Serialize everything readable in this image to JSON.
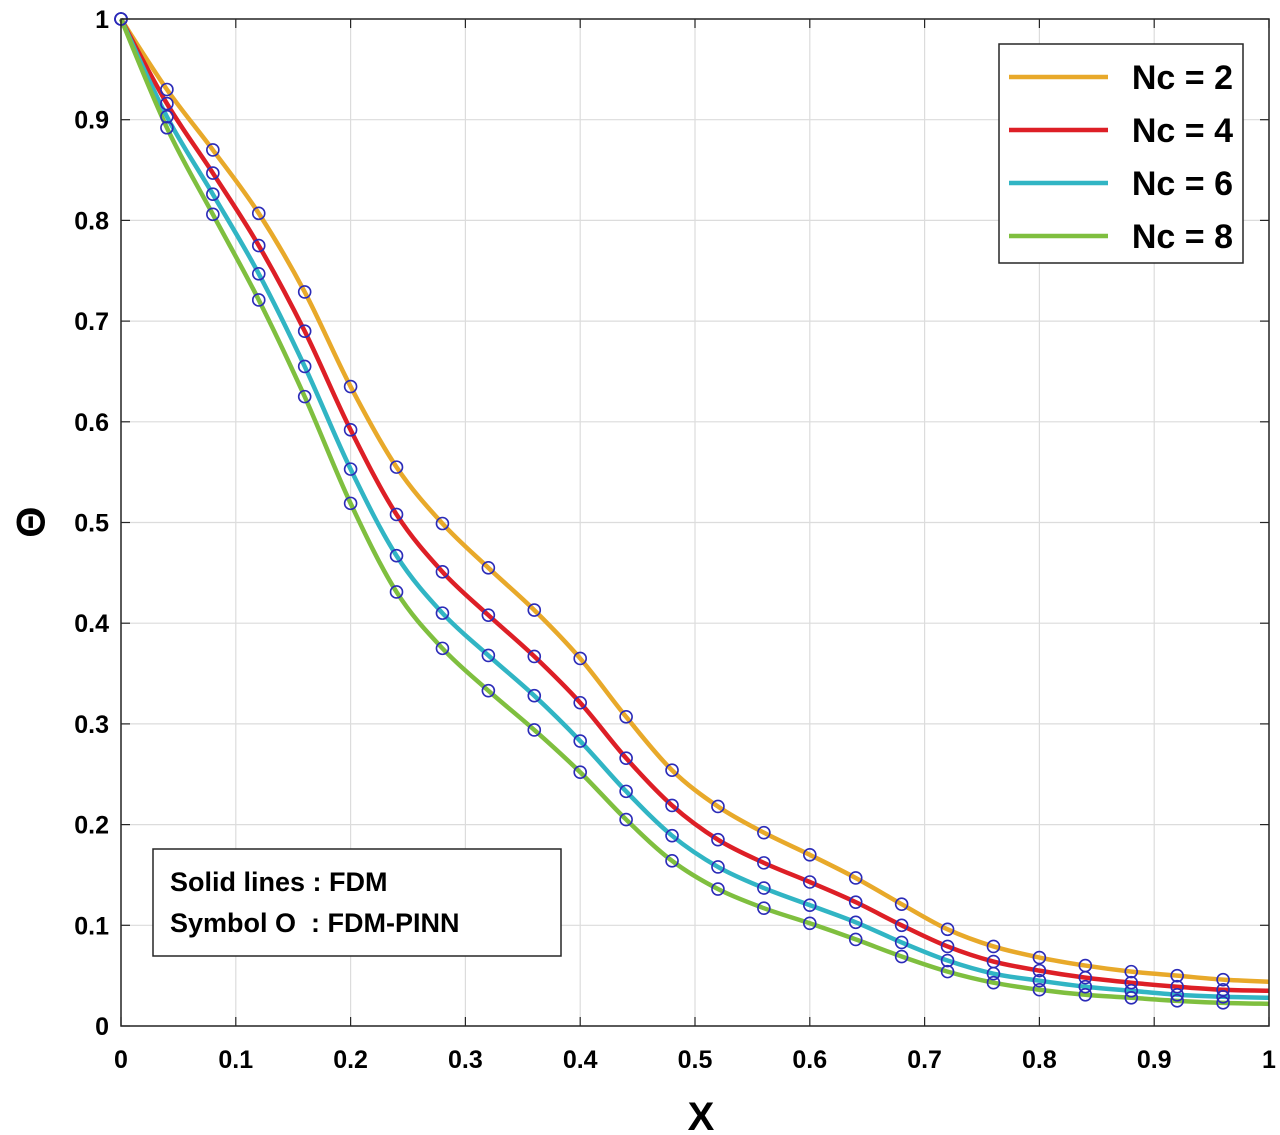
{
  "chart_data": {
    "type": "line",
    "xlabel": "X",
    "ylabel": "Θ",
    "xlim": [
      0,
      1
    ],
    "ylim": [
      0,
      1
    ],
    "grid": true,
    "legend_position": "top-right",
    "xticks": [
      "0",
      "0.1",
      "0.2",
      "0.3",
      "0.4",
      "0.5",
      "0.6",
      "0.7",
      "0.8",
      "0.9",
      "1"
    ],
    "yticks": [
      "0",
      "0.1",
      "0.2",
      "0.3",
      "0.4",
      "0.5",
      "0.6",
      "0.7",
      "0.8",
      "0.9",
      "1"
    ],
    "marker_color": "#2b2bb8",
    "x": [
      0,
      0.04,
      0.08,
      0.12,
      0.16,
      0.2,
      0.24,
      0.28,
      0.32,
      0.36,
      0.4,
      0.44,
      0.48,
      0.52,
      0.56,
      0.6,
      0.64,
      0.68,
      0.72,
      0.76,
      0.8,
      0.84,
      0.88,
      0.92,
      0.96,
      1.0
    ],
    "marker_x": [
      0,
      0.04,
      0.08,
      0.12,
      0.16,
      0.2,
      0.24,
      0.28,
      0.32,
      0.36,
      0.4,
      0.44,
      0.48,
      0.52,
      0.56,
      0.6,
      0.64,
      0.68,
      0.72,
      0.76,
      0.8,
      0.84,
      0.88,
      0.92,
      0.96
    ],
    "series": [
      {
        "name": "Nc = 2",
        "color": "#e8a92a",
        "values": [
          1.0,
          0.93,
          0.87,
          0.807,
          0.729,
          0.635,
          0.555,
          0.499,
          0.455,
          0.413,
          0.365,
          0.307,
          0.254,
          0.218,
          0.192,
          0.17,
          0.147,
          0.121,
          0.096,
          0.079,
          0.068,
          0.06,
          0.054,
          0.05,
          0.046,
          0.044
        ]
      },
      {
        "name": "Nc = 4",
        "color": "#dd1f26",
        "values": [
          1.0,
          0.916,
          0.847,
          0.775,
          0.69,
          0.592,
          0.508,
          0.451,
          0.408,
          0.367,
          0.321,
          0.266,
          0.219,
          0.185,
          0.162,
          0.143,
          0.123,
          0.1,
          0.079,
          0.064,
          0.055,
          0.048,
          0.043,
          0.039,
          0.036,
          0.035
        ]
      },
      {
        "name": "Nc = 6",
        "color": "#31b5c4",
        "values": [
          1.0,
          0.903,
          0.826,
          0.747,
          0.655,
          0.553,
          0.467,
          0.41,
          0.368,
          0.328,
          0.283,
          0.233,
          0.189,
          0.158,
          0.137,
          0.12,
          0.103,
          0.083,
          0.065,
          0.052,
          0.045,
          0.039,
          0.035,
          0.031,
          0.029,
          0.028
        ]
      },
      {
        "name": "Nc = 8",
        "color": "#7fbf3f",
        "values": [
          1.0,
          0.892,
          0.806,
          0.721,
          0.625,
          0.519,
          0.431,
          0.375,
          0.333,
          0.294,
          0.252,
          0.205,
          0.164,
          0.136,
          0.117,
          0.102,
          0.086,
          0.069,
          0.054,
          0.043,
          0.036,
          0.031,
          0.028,
          0.025,
          0.023,
          0.022
        ]
      }
    ],
    "annotation": [
      "Solid lines : FDM",
      "Symbol O  : FDM-PINN"
    ]
  }
}
